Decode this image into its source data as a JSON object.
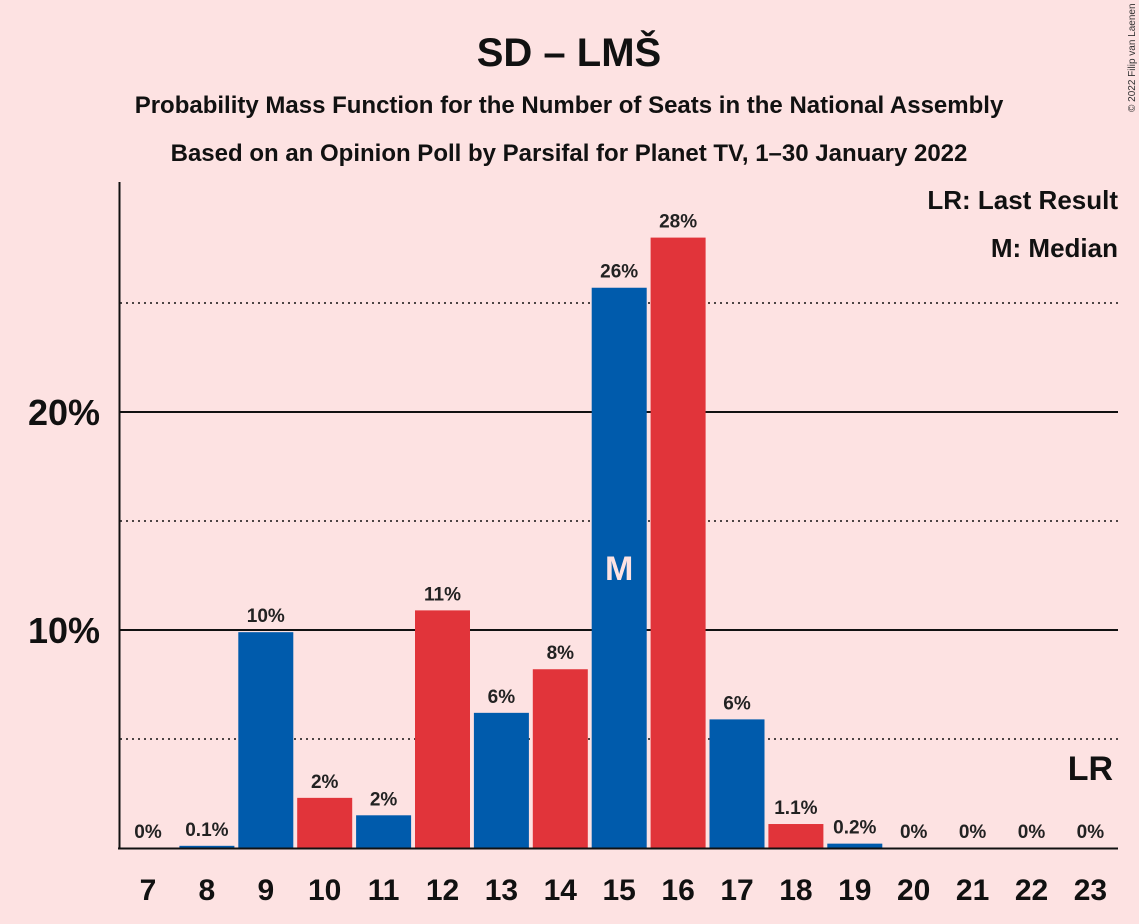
{
  "header": {
    "title": "SD – LMŠ",
    "subtitle1": "Probability Mass Function for the Number of Seats in the National Assembly",
    "subtitle2": "Based on an Opinion Poll by Parsifal for Planet TV, 1–30 January 2022",
    "copyright": "© 2022 Filip van Laenen"
  },
  "legend": {
    "last_result": "LR: Last Result",
    "median": "M: Median"
  },
  "colors": {
    "background": "#fde2e2",
    "blue": "#005bac",
    "red": "#e1343a",
    "text": "#111111"
  },
  "chart_data": {
    "type": "bar",
    "categories": [
      7,
      8,
      9,
      10,
      11,
      12,
      13,
      14,
      15,
      16,
      17,
      18,
      19,
      20,
      21,
      22,
      23
    ],
    "values": [
      0,
      0.1,
      9.9,
      2.3,
      1.5,
      10.9,
      6.2,
      8.2,
      25.7,
      28.0,
      5.9,
      1.1,
      0.2,
      0,
      0,
      0,
      0
    ],
    "labels": [
      "0%",
      "0.1%",
      "10%",
      "2%",
      "2%",
      "11%",
      "6%",
      "8%",
      "26%",
      "28%",
      "6%",
      "1.1%",
      "0.2%",
      "0%",
      "0%",
      "0%",
      "0%"
    ],
    "bar_colors": [
      "blue",
      "blue",
      "blue",
      "red",
      "blue",
      "red",
      "blue",
      "red",
      "blue",
      "red",
      "blue",
      "red",
      "blue",
      "blue",
      "blue",
      "blue",
      "blue"
    ],
    "yticks": [
      {
        "value": 10,
        "label": "10%"
      },
      {
        "value": 20,
        "label": "20%"
      }
    ],
    "minor_gridlines": [
      5,
      15,
      25
    ],
    "ylim": [
      0,
      30.5
    ],
    "median_seat": 15,
    "median_label": "M",
    "last_result_seat": 23,
    "last_result_label": "LR",
    "legend_position": "top-right"
  }
}
